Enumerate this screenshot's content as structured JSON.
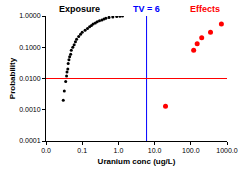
{
  "chart_data": {
    "type": "scatter",
    "log": true,
    "grid": false,
    "xlabel": "Uranium conc (ug/L)",
    "ylabel": "Probability",
    "xlim": [
      0.01,
      1000
    ],
    "ylim": [
      0.0001,
      1
    ],
    "xticks": [
      {
        "value": 0.01,
        "label": "0.0"
      },
      {
        "value": 0.1,
        "label": "0.1"
      },
      {
        "value": 1,
        "label": "1.0"
      },
      {
        "value": 10,
        "label": "10.0"
      },
      {
        "value": 100,
        "label": "100.0"
      },
      {
        "value": 1000,
        "label": "1000.0"
      }
    ],
    "yticks": [
      0.0001,
      {
        "value": 0.001,
        "label": "0.0010"
      },
      {
        "value": 0.01,
        "label": "0.0100"
      },
      {
        "value": 0.1,
        "label": "0.1000"
      },
      {
        "value": 1,
        "label": "1.0000"
      }
    ],
    "series": [
      {
        "name": "Exposure",
        "color": "#000000",
        "marker": "circle",
        "x": [
          0.03,
          0.032,
          0.035,
          0.037,
          0.038,
          0.04,
          0.041,
          0.043,
          0.045,
          0.048,
          0.05,
          0.055,
          0.06,
          0.065,
          0.07,
          0.08,
          0.09,
          0.1,
          0.12,
          0.14,
          0.16,
          0.18,
          0.2,
          0.23,
          0.26,
          0.3,
          0.35,
          0.4,
          0.45,
          0.55,
          0.7,
          0.9,
          1.1,
          1.3
        ],
        "values": [
          0.002,
          0.004,
          0.008,
          0.012,
          0.016,
          0.02,
          0.03,
          0.04,
          0.05,
          0.06,
          0.08,
          0.1,
          0.12,
          0.15,
          0.18,
          0.22,
          0.26,
          0.3,
          0.35,
          0.4,
          0.45,
          0.5,
          0.55,
          0.6,
          0.65,
          0.7,
          0.75,
          0.8,
          0.85,
          0.9,
          0.93,
          0.96,
          0.98,
          1.0
        ]
      },
      {
        "name": "Effects",
        "color": "#ff0000",
        "marker": "circle",
        "x": [
          20,
          120,
          150,
          200,
          350,
          700
        ],
        "values": [
          0.0013,
          0.08,
          0.13,
          0.2,
          0.3,
          0.55
        ]
      }
    ],
    "reference_lines": [
      {
        "axis": "x",
        "value": 6,
        "label": "TV = 6",
        "color": "#0000ff"
      },
      {
        "axis": "y",
        "value": 0.01,
        "color": "#ff0000"
      }
    ]
  }
}
